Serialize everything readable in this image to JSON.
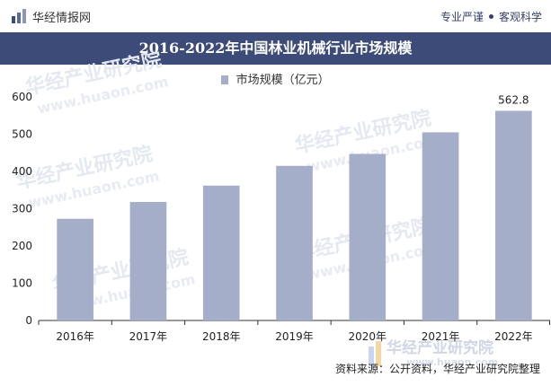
{
  "header": {
    "brand_name": "华经情报网",
    "slogan_left": "专业严谨",
    "slogan_right": "客观科学"
  },
  "title": "2016-2022年中国林业机械行业市场规模",
  "watermark": {
    "brand": "华经产业研究院",
    "url": "www.huaon.com"
  },
  "source": "资料来源：公开资料，华经产业研究院整理",
  "colors": {
    "bar": "#a5aec8",
    "title_bg": "#3c4b78",
    "axis": "#333333",
    "watermark": "#dfe4ef"
  },
  "chart_data": {
    "type": "bar",
    "title": "2016-2022年中国林业机械行业市场规模",
    "categories": [
      "2016年",
      "2017年",
      "2018年",
      "2019年",
      "2020年",
      "2021年",
      "2022年"
    ],
    "series": [
      {
        "name": "市场规模（亿元）",
        "values": [
          273,
          318,
          362,
          415,
          447,
          505,
          562.8
        ]
      }
    ],
    "data_labels": [
      {
        "category": "2022年",
        "text": "562.8"
      }
    ],
    "y_ticks": [
      "0",
      "100",
      "200",
      "300",
      "400",
      "500",
      "600"
    ],
    "ylim": [
      0,
      600
    ],
    "grid": false,
    "legend": "top-center"
  }
}
